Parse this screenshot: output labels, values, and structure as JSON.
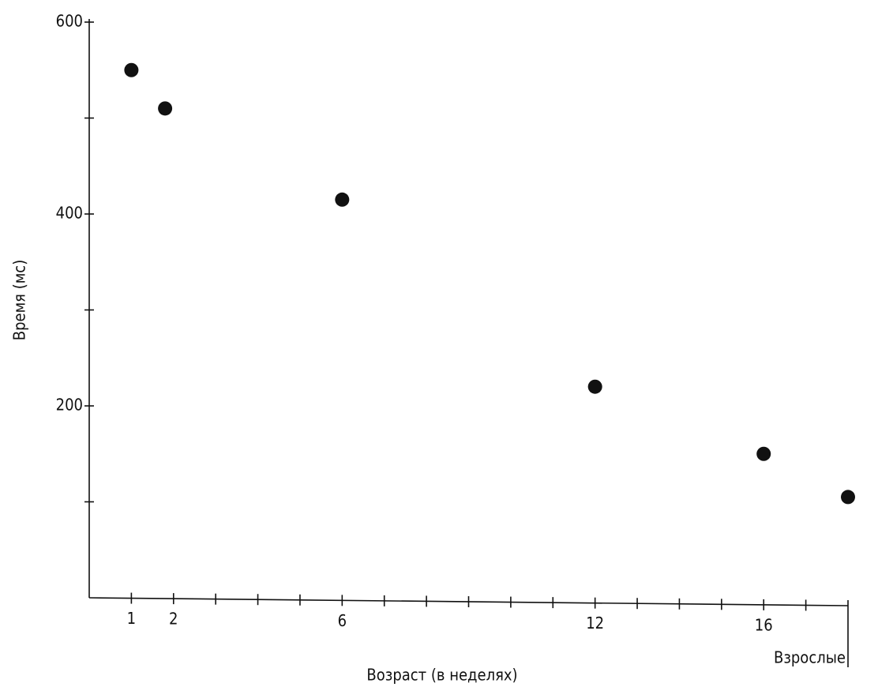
{
  "chart_data": {
    "type": "scatter",
    "x_label": "Возраст (в неделях)",
    "y_label": "Время (мс)",
    "x": [
      1,
      1.8,
      6,
      12,
      16,
      18
    ],
    "values": [
      550,
      510,
      415,
      220,
      150,
      105
    ],
    "color": "#111111",
    "xlim": [
      0,
      18
    ],
    "ylim": [
      0,
      600
    ],
    "xticks": [
      1,
      2,
      6,
      12,
      16,
      {
        "value": 18,
        "label": "Взрослые"
      }
    ],
    "x_minor_ticks": [
      3,
      4,
      5,
      7,
      8,
      9,
      10,
      11,
      13,
      14,
      15,
      17
    ],
    "yticks": [
      200,
      400,
      600
    ],
    "y_minor_ticks": [
      100,
      300,
      500
    ]
  }
}
